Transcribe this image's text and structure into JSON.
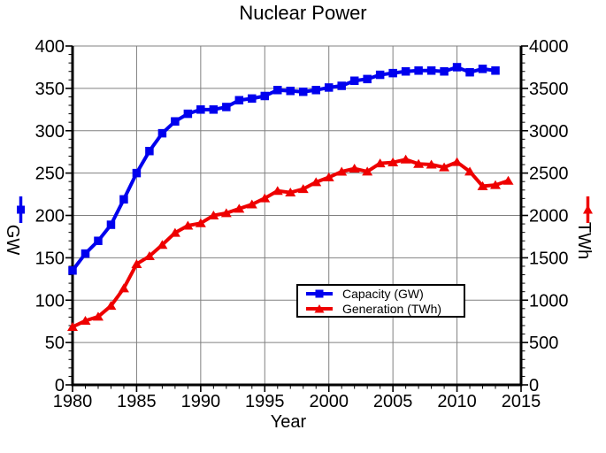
{
  "title": "Nuclear Power",
  "axes": {
    "x_range": [
      1980,
      2015
    ],
    "y_left_range": [
      0,
      400
    ],
    "y_right_range": [
      0,
      4000
    ],
    "x_ticks": [
      1980,
      1985,
      1990,
      1995,
      2000,
      2005,
      2010,
      2015
    ],
    "y_left_ticks": [
      0,
      50,
      100,
      150,
      200,
      250,
      300,
      350,
      400
    ],
    "y_right_ticks": [
      0,
      500,
      1000,
      1500,
      2000,
      2500,
      3000,
      3500,
      4000
    ],
    "x_minor_step": 1,
    "y_left_minor_step": 10,
    "y_right_minor_step": 100,
    "grid": true,
    "grid_color": "#808080",
    "axis_color": "#000000"
  },
  "chart_data": {
    "type": "line",
    "title": "Nuclear Power",
    "xlabel": "Year",
    "ylabel_left": "GW",
    "ylabel_right": "TWh",
    "legend_position": "inside-bottom-center",
    "series": [
      {
        "name": "Capacity (GW)",
        "axis": "left",
        "color": "#0000ee",
        "marker": "square",
        "x": [
          1980,
          1981,
          1982,
          1983,
          1984,
          1985,
          1986,
          1987,
          1988,
          1989,
          1990,
          1991,
          1992,
          1993,
          1994,
          1995,
          1996,
          1997,
          1998,
          1999,
          2000,
          2001,
          2002,
          2003,
          2004,
          2005,
          2006,
          2007,
          2008,
          2009,
          2010,
          2011,
          2012,
          2013
        ],
        "values": [
          135,
          155,
          170,
          189,
          219,
          250,
          276,
          297,
          311,
          320,
          325,
          325,
          328,
          336,
          338,
          341,
          348,
          347,
          346,
          348,
          351,
          353,
          359,
          361,
          366,
          368,
          370,
          371,
          371,
          370,
          375,
          369,
          373,
          371
        ]
      },
      {
        "name": "Generation (TWh)",
        "axis": "right",
        "color": "#ee0000",
        "marker": "triangle",
        "x": [
          1980,
          1981,
          1982,
          1983,
          1984,
          1985,
          1986,
          1987,
          1988,
          1989,
          1990,
          1991,
          1992,
          1993,
          1994,
          1995,
          1996,
          1997,
          1998,
          1999,
          2000,
          2001,
          2002,
          2003,
          2004,
          2005,
          2006,
          2007,
          2008,
          2009,
          2010,
          2011,
          2012,
          2013,
          2014
        ],
        "values": [
          684,
          757,
          805,
          933,
          1140,
          1426,
          1519,
          1653,
          1795,
          1880,
          1908,
          2000,
          2027,
          2080,
          2130,
          2203,
          2290,
          2271,
          2312,
          2393,
          2450,
          2517,
          2553,
          2518,
          2615,
          2626,
          2660,
          2608,
          2601,
          2568,
          2630,
          2518,
          2346,
          2359,
          2410
        ]
      }
    ]
  }
}
